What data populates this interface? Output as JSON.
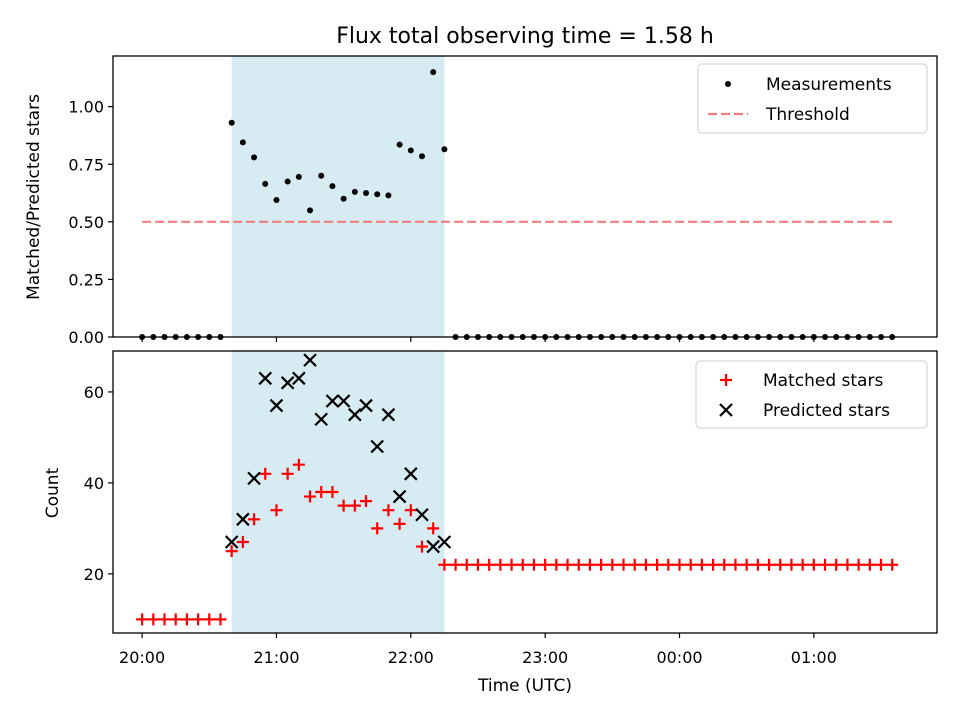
{
  "chart_data": [
    {
      "type": "scatter",
      "title": "Flux total observing time = 1.58 h",
      "xlabel": "",
      "ylabel": "Matched/Predicted stars",
      "ylim": [
        0,
        1.22
      ],
      "yticks": [
        "0.00",
        "0.25",
        "0.50",
        "0.75",
        "1.00"
      ],
      "grid": false,
      "legend_position": "upper right",
      "shaded_span": {
        "start": "20:40",
        "end": "22:15",
        "color": "#add8e6"
      },
      "series": [
        {
          "name": "Measurements",
          "kind": "points",
          "color": "#000000",
          "x": [
            "20:00",
            "20:05",
            "20:10",
            "20:15",
            "20:20",
            "20:25",
            "20:30",
            "20:35",
            "20:40",
            "20:45",
            "20:50",
            "20:55",
            "21:00",
            "21:05",
            "21:10",
            "21:15",
            "21:20",
            "21:25",
            "21:30",
            "21:35",
            "21:40",
            "21:45",
            "21:50",
            "21:55",
            "22:00",
            "22:05",
            "22:10",
            "22:15",
            "22:20",
            "22:25",
            "22:30",
            "22:35",
            "22:40",
            "22:45",
            "22:50",
            "22:55",
            "23:00",
            "23:05",
            "23:10",
            "23:15",
            "23:20",
            "23:25",
            "23:30",
            "23:35",
            "23:40",
            "23:45",
            "23:50",
            "23:55",
            "00:00",
            "00:05",
            "00:10",
            "00:15",
            "00:20",
            "00:25",
            "00:30",
            "00:35",
            "00:40",
            "00:45",
            "00:50",
            "00:55",
            "01:00",
            "01:05",
            "01:10",
            "01:15",
            "01:20",
            "01:25",
            "01:30",
            "01:35"
          ],
          "y": [
            0,
            0,
            0,
            0,
            0,
            0,
            0,
            0,
            0.93,
            0.845,
            0.78,
            0.665,
            0.595,
            0.675,
            0.695,
            0.55,
            0.7,
            0.655,
            0.6,
            0.63,
            0.625,
            0.62,
            0.615,
            0.835,
            0.81,
            0.785,
            1.15,
            0.815,
            0,
            0,
            0,
            0,
            0,
            0,
            0,
            0,
            0,
            0,
            0,
            0,
            0,
            0,
            0,
            0,
            0,
            0,
            0,
            0,
            0,
            0,
            0,
            0,
            0,
            0,
            0,
            0,
            0,
            0,
            0,
            0,
            0,
            0,
            0,
            0,
            0,
            0,
            0,
            0
          ]
        },
        {
          "name": "Threshold",
          "kind": "dashed-line",
          "color": "#f08080",
          "x": [
            "20:00",
            "01:35"
          ],
          "y": [
            0.5,
            0.5
          ]
        }
      ]
    },
    {
      "type": "scatter",
      "title": "",
      "xlabel": "Time (UTC)",
      "ylabel": "Count",
      "ylim": [
        7,
        69
      ],
      "yticks": [
        "20",
        "40",
        "60"
      ],
      "xticks": [
        "20:00",
        "21:00",
        "22:00",
        "23:00",
        "00:00",
        "01:00"
      ],
      "grid": false,
      "legend_position": "upper right",
      "shaded_span": {
        "start": "20:40",
        "end": "22:15",
        "color": "#add8e6"
      },
      "series": [
        {
          "name": "Matched stars",
          "kind": "plus",
          "color": "#ff0000",
          "x": [
            "20:00",
            "20:05",
            "20:10",
            "20:15",
            "20:20",
            "20:25",
            "20:30",
            "20:35",
            "20:40",
            "20:45",
            "20:50",
            "20:55",
            "21:00",
            "21:05",
            "21:10",
            "21:15",
            "21:20",
            "21:25",
            "21:30",
            "21:35",
            "21:40",
            "21:45",
            "21:50",
            "21:55",
            "22:00",
            "22:05",
            "22:10",
            "22:15",
            "22:20",
            "22:25",
            "22:30",
            "22:35",
            "22:40",
            "22:45",
            "22:50",
            "22:55",
            "23:00",
            "23:05",
            "23:10",
            "23:15",
            "23:20",
            "23:25",
            "23:30",
            "23:35",
            "23:40",
            "23:45",
            "23:50",
            "23:55",
            "00:00",
            "00:05",
            "00:10",
            "00:15",
            "00:20",
            "00:25",
            "00:30",
            "00:35",
            "00:40",
            "00:45",
            "00:50",
            "00:55",
            "01:00",
            "01:05",
            "01:10",
            "01:15",
            "01:20",
            "01:25",
            "01:30",
            "01:35"
          ],
          "y": [
            10,
            10,
            10,
            10,
            10,
            10,
            10,
            10,
            25,
            27,
            32,
            42,
            34,
            42,
            44,
            37,
            38,
            38,
            35,
            35,
            36,
            30,
            34,
            31,
            34,
            26,
            30,
            22,
            22,
            22,
            22,
            22,
            22,
            22,
            22,
            22,
            22,
            22,
            22,
            22,
            22,
            22,
            22,
            22,
            22,
            22,
            22,
            22,
            22,
            22,
            22,
            22,
            22,
            22,
            22,
            22,
            22,
            22,
            22,
            22,
            22,
            22,
            22,
            22,
            22,
            22,
            22,
            22
          ]
        },
        {
          "name": "Predicted stars",
          "kind": "x",
          "color": "#000000",
          "x": [
            "20:40",
            "20:45",
            "20:50",
            "20:55",
            "21:00",
            "21:05",
            "21:10",
            "21:15",
            "21:20",
            "21:25",
            "21:30",
            "21:35",
            "21:40",
            "21:45",
            "21:50",
            "21:55",
            "22:00",
            "22:05",
            "22:10",
            "22:15"
          ],
          "y": [
            27,
            32,
            41,
            63,
            57,
            62,
            63,
            67,
            54,
            58,
            58,
            55,
            57,
            48,
            55,
            37,
            42,
            33,
            26,
            27
          ]
        }
      ]
    }
  ]
}
